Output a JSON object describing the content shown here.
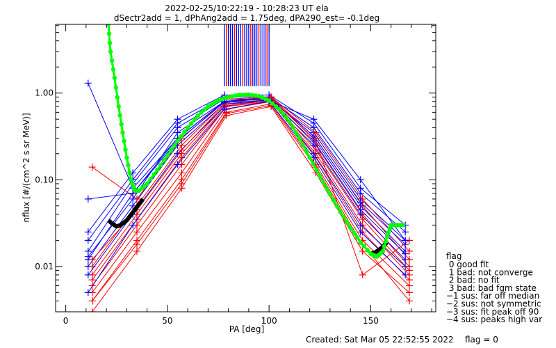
{
  "chart_data": {
    "type": "line",
    "title": "2022-02-25/10:22:19 - 10:28:23 UT ela",
    "subtitle": "dSectr2add = 1, dPhAng2add = 1.75deg, dPA290_est=  -0.1deg",
    "xlabel": "PA [deg]",
    "ylabel": "nflux [#/(cm^2 s sr MeV)]",
    "xlim": [
      -5,
      182
    ],
    "ylim": [
      0.003,
      6.2
    ],
    "yscale": "log",
    "x_ticks": [
      0,
      50,
      100,
      150
    ],
    "x_tick_labels": [
      "0",
      "50",
      "100",
      "150"
    ],
    "y_ticks": [
      0.01,
      0.1,
      1.0
    ],
    "y_tick_labels": [
      "0.01",
      "0.10",
      "1.00"
    ],
    "grid": false,
    "colors": {
      "blue": "#0000ff",
      "red": "#ff0000",
      "fit": "#00ff00",
      "black": "#000000"
    },
    "blue_pa": [
      11,
      33,
      55,
      78,
      100,
      122,
      145,
      167
    ],
    "red_pa": [
      13,
      35,
      57,
      79,
      101,
      123,
      146,
      169
    ],
    "blue_series": [
      [
        0.012,
        0.07,
        0.3,
        0.8,
        0.9,
        0.3,
        0.05,
        0.015
      ],
      [
        0.015,
        0.09,
        0.4,
        0.85,
        0.85,
        0.35,
        0.06,
        0.02
      ],
      [
        0.01,
        0.05,
        0.25,
        0.75,
        0.8,
        0.25,
        0.04,
        0.012
      ],
      [
        0.02,
        0.1,
        0.45,
        0.9,
        0.9,
        0.4,
        0.07,
        0.025
      ],
      [
        0.008,
        0.04,
        0.2,
        0.7,
        0.85,
        0.2,
        0.03,
        0.01
      ],
      [
        0.013,
        0.06,
        0.35,
        0.8,
        0.88,
        0.32,
        0.055,
        0.018
      ],
      [
        0.025,
        0.12,
        0.5,
        0.95,
        0.95,
        0.45,
        0.08,
        0.03
      ],
      [
        0.005,
        0.03,
        0.15,
        0.65,
        0.8,
        0.18,
        0.025,
        0.008
      ],
      [
        1.3,
        0.08,
        0.3,
        0.8,
        0.85,
        0.28,
        0.045,
        0.014
      ],
      [
        0.06,
        0.07,
        0.28,
        0.78,
        0.82,
        0.5,
        0.1,
        0.02
      ]
    ],
    "red_series": [
      [
        0.006,
        0.03,
        0.15,
        0.7,
        0.8,
        0.2,
        0.03,
        0.008
      ],
      [
        0.004,
        0.02,
        0.1,
        0.6,
        0.75,
        0.15,
        0.02,
        0.006
      ],
      [
        0.008,
        0.04,
        0.2,
        0.75,
        0.85,
        0.25,
        0.04,
        0.01
      ],
      [
        0.003,
        0.015,
        0.08,
        0.55,
        0.7,
        0.12,
        0.015,
        0.005
      ],
      [
        0.01,
        0.05,
        0.25,
        0.8,
        0.9,
        0.3,
        0.05,
        0.012
      ],
      [
        0.14,
        0.06,
        0.3,
        0.85,
        0.9,
        0.35,
        0.06,
        0.015
      ],
      [
        0.005,
        0.025,
        0.12,
        0.65,
        0.8,
        0.18,
        0.025,
        0.007
      ],
      [
        0.007,
        0.035,
        0.18,
        0.72,
        0.82,
        0.22,
        0.035,
        0.009
      ],
      [
        0.012,
        0.045,
        0.22,
        0.78,
        0.88,
        0.28,
        0.008,
        0.02
      ],
      [
        0.004,
        0.018,
        0.09,
        0.58,
        0.72,
        0.14,
        0.018,
        0.004
      ]
    ],
    "error_bar_pa": [
      78,
      79,
      80,
      81,
      82,
      83,
      84,
      85,
      86,
      87,
      88,
      89,
      90,
      91,
      92,
      93,
      94,
      95,
      96,
      97,
      98,
      99,
      100
    ],
    "error_bar_top": 6.2,
    "error_bar_bottom": 1.2,
    "fit_curve": {
      "x": [
        21,
        22,
        24,
        26,
        28,
        30,
        32,
        34,
        36,
        40,
        45,
        50,
        55,
        60,
        65,
        70,
        75,
        80,
        85,
        90,
        95,
        100,
        105,
        110,
        115,
        120,
        125,
        130,
        135,
        140,
        145,
        150,
        153,
        156,
        158,
        160,
        163,
        167
      ],
      "y": [
        6.2,
        3.0,
        1.5,
        0.7,
        0.35,
        0.18,
        0.1,
        0.075,
        0.075,
        0.09,
        0.13,
        0.19,
        0.28,
        0.4,
        0.55,
        0.7,
        0.82,
        0.9,
        0.95,
        0.96,
        0.92,
        0.82,
        0.65,
        0.47,
        0.3,
        0.18,
        0.11,
        0.068,
        0.043,
        0.028,
        0.019,
        0.014,
        0.013,
        0.015,
        0.022,
        0.03,
        0.03,
        0.03
      ]
    },
    "black_curve": [
      {
        "x": [
          21,
          23,
          25,
          27,
          30,
          33,
          36,
          38
        ],
        "y": [
          0.034,
          0.031,
          0.029,
          0.03,
          0.034,
          0.042,
          0.052,
          0.06
        ]
      },
      {
        "x": [
          150,
          152,
          154,
          156,
          158
        ],
        "y": [
          0.014,
          0.0145,
          0.0155,
          0.017,
          0.019
        ]
      }
    ],
    "legend": {
      "title": "flag",
      "entries": [
        " 0 good fit",
        " 1 bad: not converge",
        " 2 bad: no fit",
        " 3 bad: bad fgm state",
        "−1 sus: far off median",
        "−2 sus: not symmetric",
        "−3 sus: fit peak off 90",
        "−4 sus: peaks high var"
      ]
    },
    "footer": {
      "created": "Created: Sat Mar 05 22:52:55 2022",
      "flag": "flag = 0"
    }
  }
}
